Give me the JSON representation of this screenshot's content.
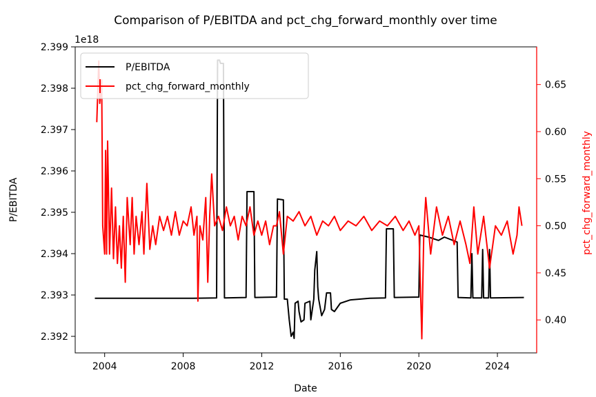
{
  "chart_data": {
    "type": "line",
    "title": "Comparison of P/EBITDA and pct_chg_forward_monthly over time",
    "xlabel": "Date",
    "ylabel_left": "P/EBITDA",
    "ylabel_right": "pct_chg_forward_monthly",
    "left_axis_multiplier": "1e18",
    "x_ticks": [
      "2004",
      "2008",
      "2012",
      "2016",
      "2020",
      "2024"
    ],
    "y_left_ticks": [
      "2.392",
      "2.393",
      "2.394",
      "2.395",
      "2.396",
      "2.397",
      "2.398",
      "2.399"
    ],
    "y_right_ticks": [
      "0.40",
      "0.45",
      "0.50",
      "0.55",
      "0.60",
      "0.65"
    ],
    "xlim": [
      2002.5,
      2026.0
    ],
    "ylim_left": [
      2.3916,
      2.399
    ],
    "ylim_right": [
      0.365,
      0.69
    ],
    "legend_position": "upper-left",
    "grid": false,
    "colors": {
      "left_series": "#000000",
      "right_series": "#ff0000",
      "right_axis": "#ff0000"
    },
    "series": [
      {
        "name": "P/EBITDA",
        "axis": "left",
        "color": "#000000",
        "points": [
          [
            2003.5,
            2.39292
          ],
          [
            2008.5,
            2.39292
          ],
          [
            2009.7,
            2.39293
          ],
          [
            2009.75,
            2.39868
          ],
          [
            2009.85,
            2.39868
          ],
          [
            2009.9,
            2.3986
          ],
          [
            2010.05,
            2.3986
          ],
          [
            2010.1,
            2.39293
          ],
          [
            2011.2,
            2.39294
          ],
          [
            2011.25,
            2.3955
          ],
          [
            2011.6,
            2.3955
          ],
          [
            2011.65,
            2.39294
          ],
          [
            2012.75,
            2.39295
          ],
          [
            2012.8,
            2.39532
          ],
          [
            2013.1,
            2.3953
          ],
          [
            2013.15,
            2.3929
          ],
          [
            2013.3,
            2.3929
          ],
          [
            2013.4,
            2.3924
          ],
          [
            2013.5,
            2.392
          ],
          [
            2013.6,
            2.3921
          ],
          [
            2013.65,
            2.39195
          ],
          [
            2013.7,
            2.3928
          ],
          [
            2013.85,
            2.39285
          ],
          [
            2013.9,
            2.3926
          ],
          [
            2014.0,
            2.39235
          ],
          [
            2014.15,
            2.3924
          ],
          [
            2014.2,
            2.3928
          ],
          [
            2014.45,
            2.39285
          ],
          [
            2014.5,
            2.3924
          ],
          [
            2014.65,
            2.3929
          ],
          [
            2014.7,
            2.3936
          ],
          [
            2014.8,
            2.39405
          ],
          [
            2014.85,
            2.3932
          ],
          [
            2014.9,
            2.3929
          ],
          [
            2015.05,
            2.3925
          ],
          [
            2015.2,
            2.39265
          ],
          [
            2015.3,
            2.39305
          ],
          [
            2015.5,
            2.39305
          ],
          [
            2015.55,
            2.39265
          ],
          [
            2015.7,
            2.3926
          ],
          [
            2016.0,
            2.3928
          ],
          [
            2016.5,
            2.39288
          ],
          [
            2017.5,
            2.39292
          ],
          [
            2018.3,
            2.39293
          ],
          [
            2018.35,
            2.3946
          ],
          [
            2018.7,
            2.3946
          ],
          [
            2018.75,
            2.39294
          ],
          [
            2020.0,
            2.39295
          ],
          [
            2020.05,
            2.39445
          ],
          [
            2020.5,
            2.3944
          ],
          [
            2021.0,
            2.39432
          ],
          [
            2021.3,
            2.3944
          ],
          [
            2021.95,
            2.39428
          ],
          [
            2022.0,
            2.39294
          ],
          [
            2022.65,
            2.39293
          ],
          [
            2022.7,
            2.394
          ],
          [
            2022.75,
            2.39293
          ],
          [
            2023.2,
            2.39293
          ],
          [
            2023.25,
            2.3941
          ],
          [
            2023.3,
            2.39293
          ],
          [
            2023.55,
            2.39293
          ],
          [
            2023.6,
            2.3941
          ],
          [
            2023.65,
            2.39293
          ],
          [
            2025.35,
            2.39294
          ]
        ]
      },
      {
        "name": "pct_chg_forward_monthly",
        "axis": "right",
        "color": "#ff0000",
        "points": [
          [
            2003.6,
            0.61
          ],
          [
            2003.7,
            0.675
          ],
          [
            2003.75,
            0.63
          ],
          [
            2003.85,
            0.655
          ],
          [
            2003.9,
            0.5
          ],
          [
            2004.0,
            0.47
          ],
          [
            2004.05,
            0.58
          ],
          [
            2004.1,
            0.47
          ],
          [
            2004.15,
            0.59
          ],
          [
            2004.25,
            0.47
          ],
          [
            2004.35,
            0.54
          ],
          [
            2004.45,
            0.465
          ],
          [
            2004.55,
            0.52
          ],
          [
            2004.65,
            0.46
          ],
          [
            2004.75,
            0.5
          ],
          [
            2004.85,
            0.455
          ],
          [
            2004.95,
            0.51
          ],
          [
            2005.05,
            0.44
          ],
          [
            2005.15,
            0.53
          ],
          [
            2005.3,
            0.48
          ],
          [
            2005.4,
            0.53
          ],
          [
            2005.5,
            0.47
          ],
          [
            2005.6,
            0.51
          ],
          [
            2005.75,
            0.48
          ],
          [
            2005.9,
            0.515
          ],
          [
            2006.0,
            0.47
          ],
          [
            2006.15,
            0.545
          ],
          [
            2006.3,
            0.475
          ],
          [
            2006.45,
            0.5
          ],
          [
            2006.6,
            0.48
          ],
          [
            2006.8,
            0.51
          ],
          [
            2007.0,
            0.495
          ],
          [
            2007.2,
            0.51
          ],
          [
            2007.4,
            0.49
          ],
          [
            2007.6,
            0.515
          ],
          [
            2007.8,
            0.49
          ],
          [
            2008.0,
            0.505
          ],
          [
            2008.2,
            0.5
          ],
          [
            2008.4,
            0.52
          ],
          [
            2008.55,
            0.49
          ],
          [
            2008.7,
            0.51
          ],
          [
            2008.75,
            0.42
          ],
          [
            2008.85,
            0.5
          ],
          [
            2009.0,
            0.485
          ],
          [
            2009.15,
            0.53
          ],
          [
            2009.25,
            0.44
          ],
          [
            2009.35,
            0.51
          ],
          [
            2009.45,
            0.555
          ],
          [
            2009.6,
            0.5
          ],
          [
            2009.8,
            0.51
          ],
          [
            2010.0,
            0.495
          ],
          [
            2010.2,
            0.52
          ],
          [
            2010.4,
            0.5
          ],
          [
            2010.6,
            0.51
          ],
          [
            2010.8,
            0.485
          ],
          [
            2011.0,
            0.51
          ],
          [
            2011.2,
            0.5
          ],
          [
            2011.4,
            0.52
          ],
          [
            2011.6,
            0.49
          ],
          [
            2011.8,
            0.505
          ],
          [
            2012.0,
            0.49
          ],
          [
            2012.2,
            0.505
          ],
          [
            2012.4,
            0.48
          ],
          [
            2012.6,
            0.5
          ],
          [
            2012.75,
            0.5
          ],
          [
            2012.9,
            0.515
          ],
          [
            2013.1,
            0.47
          ],
          [
            2013.3,
            0.51
          ],
          [
            2013.6,
            0.505
          ],
          [
            2013.9,
            0.515
          ],
          [
            2014.2,
            0.5
          ],
          [
            2014.5,
            0.51
          ],
          [
            2014.8,
            0.49
          ],
          [
            2015.1,
            0.505
          ],
          [
            2015.4,
            0.5
          ],
          [
            2015.7,
            0.51
          ],
          [
            2016.0,
            0.495
          ],
          [
            2016.4,
            0.505
          ],
          [
            2016.8,
            0.5
          ],
          [
            2017.2,
            0.51
          ],
          [
            2017.6,
            0.495
          ],
          [
            2018.0,
            0.505
          ],
          [
            2018.4,
            0.5
          ],
          [
            2018.8,
            0.51
          ],
          [
            2019.2,
            0.495
          ],
          [
            2019.5,
            0.505
          ],
          [
            2019.8,
            0.49
          ],
          [
            2020.0,
            0.5
          ],
          [
            2020.15,
            0.38
          ],
          [
            2020.25,
            0.49
          ],
          [
            2020.35,
            0.53
          ],
          [
            2020.6,
            0.47
          ],
          [
            2020.9,
            0.52
          ],
          [
            2021.2,
            0.49
          ],
          [
            2021.5,
            0.51
          ],
          [
            2021.8,
            0.48
          ],
          [
            2022.1,
            0.505
          ],
          [
            2022.4,
            0.48
          ],
          [
            2022.6,
            0.46
          ],
          [
            2022.8,
            0.52
          ],
          [
            2023.0,
            0.47
          ],
          [
            2023.3,
            0.51
          ],
          [
            2023.6,
            0.455
          ],
          [
            2023.9,
            0.5
          ],
          [
            2024.2,
            0.49
          ],
          [
            2024.5,
            0.505
          ],
          [
            2024.8,
            0.47
          ],
          [
            2025.0,
            0.49
          ],
          [
            2025.1,
            0.52
          ],
          [
            2025.25,
            0.5
          ]
        ]
      }
    ]
  }
}
